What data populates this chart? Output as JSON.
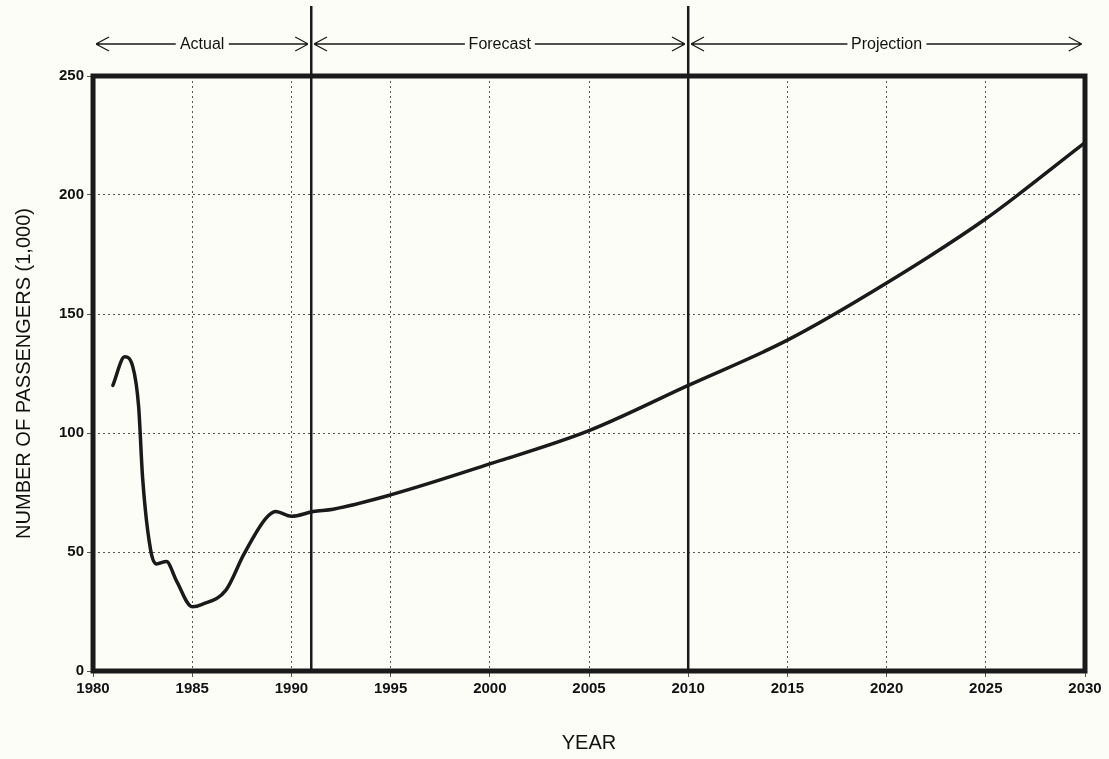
{
  "chart_data": {
    "type": "line",
    "xlabel": "YEAR",
    "ylabel": "NUMBER OF PASSENGERS (1,000)",
    "x": [
      1981,
      1981.6,
      1982,
      1982.3,
      1982.5,
      1982.9,
      1983.2,
      1983.7,
      1984.2,
      1985,
      1985.5,
      1986.7,
      1987.6,
      1988.7,
      1989.2,
      1990,
      1991.1,
      1992.1,
      1995,
      2000,
      2005,
      2010,
      2015,
      2020,
      2025,
      2030
    ],
    "series": [
      {
        "color": "#1a1a1a",
        "values": [
          120,
          132,
          128,
          111,
          81,
          51,
          45,
          46,
          38,
          27,
          28,
          34,
          49,
          64,
          67,
          65,
          67,
          68,
          74,
          87,
          101,
          120,
          139,
          163,
          190,
          222
        ]
      }
    ],
    "xlim": [
      1980,
      2030
    ],
    "xticks": [
      1980,
      1985,
      1990,
      1995,
      2000,
      2005,
      2010,
      2015,
      2020,
      2025,
      2030
    ],
    "ylim": [
      0,
      250
    ],
    "yticks": [
      0,
      50,
      100,
      150,
      200,
      250
    ],
    "grid": true,
    "marker": "none",
    "line_style": "solid",
    "legend": false,
    "ref_lines": [
      {
        "axis": "x",
        "value": 1991
      },
      {
        "axis": "x",
        "value": 2010
      }
    ],
    "annotations": [
      "Actual",
      "Forecast",
      "Projection"
    ]
  }
}
